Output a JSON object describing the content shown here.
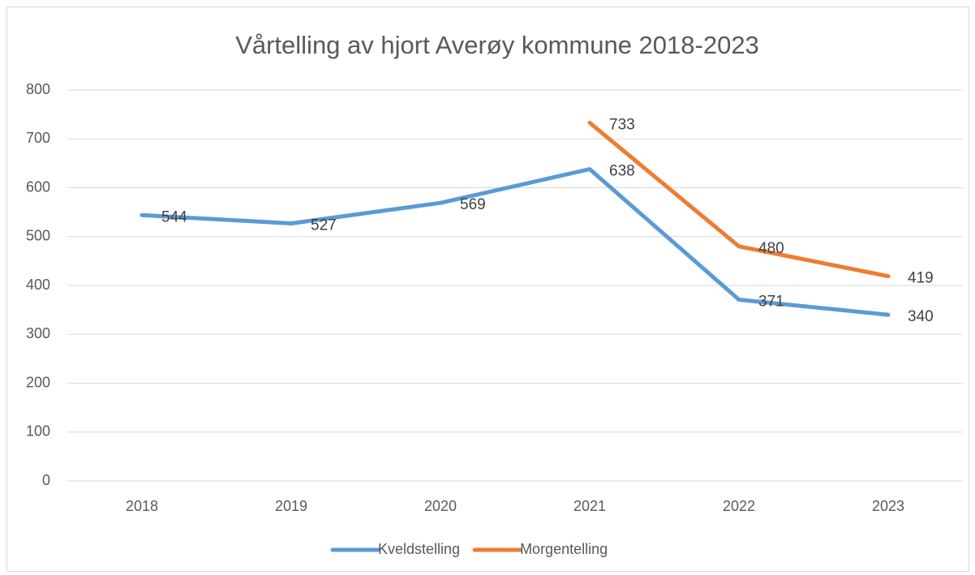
{
  "chart_data": {
    "type": "line",
    "title": "Vårtelling av hjort Averøy kommune 2018-2023",
    "categories": [
      "2018",
      "2019",
      "2020",
      "2021",
      "2022",
      "2023"
    ],
    "series": [
      {
        "name": "Kveldstelling",
        "color": "#5b9bd5",
        "values": [
          544,
          527,
          569,
          638,
          371,
          340
        ]
      },
      {
        "name": "Morgentelling",
        "color": "#ed7d31",
        "values": [
          null,
          null,
          null,
          733,
          480,
          419
        ]
      }
    ],
    "ylim": [
      0,
      800
    ],
    "yticks": [
      0,
      100,
      200,
      300,
      400,
      500,
      600,
      700,
      800
    ],
    "grid": true,
    "legend": "bottom"
  }
}
